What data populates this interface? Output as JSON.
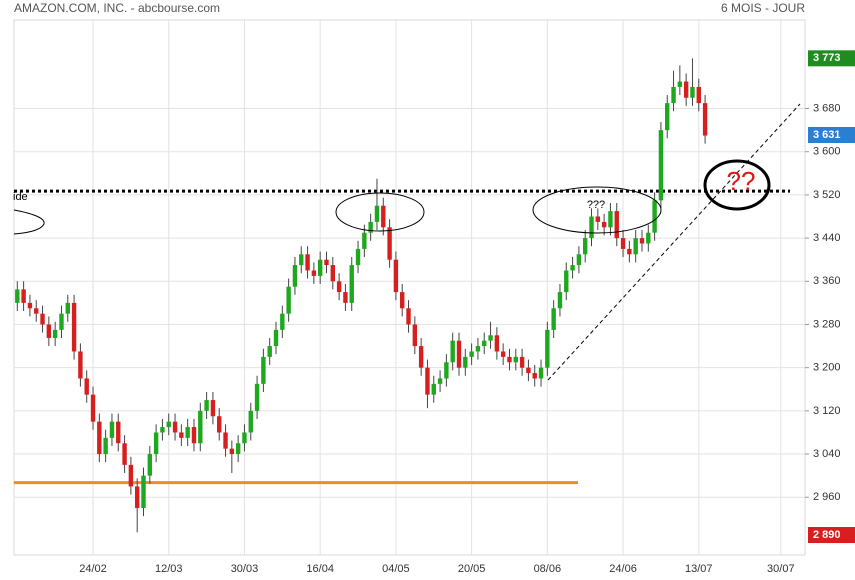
{
  "chart_data": {
    "type": "candlestick",
    "title": "AMAZON.COM, INC. - abcbourse.com",
    "subtitle": "6 MOIS - JOUR",
    "categories": [
      null,
      null,
      null,
      null,
      null,
      null,
      null,
      null,
      null,
      null,
      null,
      null,
      "24/02",
      null,
      null,
      null,
      null,
      null,
      null,
      null,
      null,
      null,
      null,
      null,
      "12/03",
      null,
      null,
      null,
      null,
      null,
      null,
      null,
      null,
      null,
      null,
      null,
      "30/03",
      null,
      null,
      null,
      null,
      null,
      null,
      null,
      null,
      null,
      null,
      null,
      "16/04",
      null,
      null,
      null,
      null,
      null,
      null,
      null,
      null,
      null,
      null,
      null,
      "04/05",
      null,
      null,
      null,
      null,
      null,
      null,
      null,
      null,
      null,
      null,
      null,
      "20/05",
      null,
      null,
      null,
      null,
      null,
      null,
      null,
      null,
      null,
      null,
      null,
      "08/06",
      null,
      null,
      null,
      null,
      null,
      null,
      null,
      null,
      null,
      null,
      null,
      "24/06",
      null,
      null,
      null,
      null,
      null,
      null,
      null,
      null,
      null,
      null,
      null,
      "13/07",
      null,
      null,
      null,
      null,
      null,
      null,
      null,
      null,
      null,
      null,
      null,
      null,
      "30/07"
    ],
    "open": [
      3320,
      3345,
      3320,
      3310,
      3300,
      3280,
      3255,
      3270,
      3300,
      3320,
      3230,
      3180,
      3150,
      3100,
      3040,
      3070,
      3100,
      3060,
      3020,
      2980,
      2940,
      3000,
      3040,
      3080,
      3090,
      3100,
      3080,
      3070,
      3090,
      3060,
      3120,
      3140,
      3110,
      3080,
      3050,
      3040,
      3060,
      3080,
      3120,
      3170,
      3220,
      3240,
      3270,
      3300,
      3350,
      3390,
      3410,
      3380,
      3370,
      3400,
      3390,
      3360,
      3340,
      3320,
      3390,
      3420,
      3450,
      3470,
      3500,
      3460,
      3400,
      3340,
      3310,
      3280,
      3240,
      3200,
      3150,
      3170,
      3180,
      3210,
      3250,
      3200,
      3220,
      3230,
      3240,
      3250,
      3260,
      3230,
      3220,
      3210,
      3220,
      3200,
      3190,
      3180,
      3200,
      3270,
      3310,
      3340,
      3380,
      3390,
      3410,
      3440,
      3480,
      3470,
      3460,
      3490,
      3440,
      3420,
      3410,
      3440,
      3430,
      3450,
      3510,
      3640,
      3690,
      3720,
      3730,
      3700,
      3720,
      3690,
      null,
      null,
      null,
      null,
      null,
      null,
      null,
      null,
      null,
      null,
      null,
      null
    ],
    "high": [
      3360,
      3360,
      3335,
      3325,
      3315,
      3295,
      3285,
      3315,
      3335,
      3335,
      3245,
      3195,
      3165,
      3115,
      3085,
      3115,
      3115,
      3075,
      3035,
      2995,
      3015,
      3055,
      3095,
      3105,
      3115,
      3115,
      3095,
      3105,
      3105,
      3135,
      3155,
      3155,
      3125,
      3095,
      3065,
      3075,
      3095,
      3135,
      3185,
      3235,
      3255,
      3285,
      3315,
      3365,
      3405,
      3425,
      3425,
      3395,
      3415,
      3415,
      3405,
      3375,
      3355,
      3405,
      3435,
      3465,
      3485,
      3550,
      3515,
      3475,
      3415,
      3355,
      3325,
      3295,
      3255,
      3215,
      3185,
      3195,
      3225,
      3265,
      3265,
      3235,
      3245,
      3255,
      3265,
      3285,
      3275,
      3245,
      3235,
      3235,
      3235,
      3215,
      3205,
      3215,
      3285,
      3325,
      3355,
      3395,
      3405,
      3425,
      3455,
      3495,
      3495,
      3485,
      3505,
      3505,
      3455,
      3435,
      3455,
      3455,
      3465,
      3525,
      3655,
      3705,
      3750,
      3760,
      3745,
      3773,
      3735,
      3705,
      null,
      null,
      null,
      null,
      null,
      null,
      null,
      null,
      null,
      null,
      null,
      null
    ],
    "low": [
      3305,
      3305,
      3295,
      3285,
      3265,
      3240,
      3240,
      3255,
      3285,
      3215,
      3165,
      3135,
      3085,
      3025,
      3025,
      3055,
      3045,
      3005,
      2965,
      2895,
      2925,
      2985,
      3025,
      3065,
      3075,
      3065,
      3055,
      3055,
      3045,
      3045,
      3105,
      3095,
      3065,
      3035,
      3005,
      3025,
      3045,
      3065,
      3105,
      3155,
      3205,
      3225,
      3255,
      3285,
      3335,
      3375,
      3365,
      3355,
      3355,
      3375,
      3345,
      3325,
      3305,
      3305,
      3375,
      3405,
      3435,
      3455,
      3445,
      3385,
      3325,
      3295,
      3265,
      3225,
      3185,
      3125,
      3135,
      3155,
      3165,
      3195,
      3185,
      3185,
      3205,
      3215,
      3225,
      3235,
      3215,
      3205,
      3195,
      3195,
      3185,
      3175,
      3165,
      3165,
      3185,
      3255,
      3295,
      3325,
      3365,
      3375,
      3395,
      3425,
      3455,
      3445,
      3445,
      3425,
      3405,
      3395,
      3395,
      3415,
      3415,
      3435,
      3495,
      3625,
      3675,
      3705,
      3685,
      3685,
      3675,
      3615,
      null,
      null,
      null,
      null,
      null,
      null,
      null,
      null,
      null,
      null,
      null,
      null
    ],
    "close": [
      3345,
      3320,
      3310,
      3300,
      3280,
      3255,
      3270,
      3300,
      3320,
      3230,
      3180,
      3150,
      3100,
      3040,
      3070,
      3100,
      3060,
      3020,
      2980,
      2940,
      3000,
      3040,
      3080,
      3090,
      3100,
      3080,
      3070,
      3090,
      3060,
      3120,
      3140,
      3110,
      3080,
      3050,
      3040,
      3060,
      3080,
      3120,
      3170,
      3220,
      3240,
      3270,
      3300,
      3350,
      3390,
      3410,
      3380,
      3370,
      3400,
      3390,
      3360,
      3340,
      3320,
      3390,
      3420,
      3450,
      3470,
      3500,
      3460,
      3400,
      3340,
      3310,
      3280,
      3240,
      3200,
      3150,
      3170,
      3180,
      3210,
      3250,
      3200,
      3220,
      3230,
      3240,
      3250,
      3260,
      3230,
      3220,
      3210,
      3220,
      3200,
      3190,
      3180,
      3200,
      3270,
      3310,
      3340,
      3380,
      3390,
      3410,
      3440,
      3480,
      3470,
      3460,
      3490,
      3440,
      3420,
      3410,
      3440,
      3430,
      3450,
      3510,
      3640,
      3690,
      3720,
      3730,
      3700,
      3720,
      3690,
      3630,
      null,
      null,
      null,
      null,
      null,
      null,
      null,
      null,
      null,
      null,
      null,
      null
    ],
    "up_color": "#1ea81e",
    "down_color": "#d71f1f",
    "ylim": [
      2853,
      3844
    ],
    "yticks": [
      {
        "value": 3680,
        "label": "3 680"
      },
      {
        "value": 3600,
        "label": "3 600"
      },
      {
        "value": 3520,
        "label": "3 520"
      },
      {
        "value": 3440,
        "label": "3 440"
      },
      {
        "value": 3360,
        "label": "3 360"
      },
      {
        "value": 3280,
        "label": "3 280"
      },
      {
        "value": 3200,
        "label": "3 200"
      },
      {
        "value": 3120,
        "label": "3 120"
      },
      {
        "value": 3040,
        "label": "3 040"
      },
      {
        "value": 2960,
        "label": "2 960"
      }
    ],
    "grid": true,
    "price_markers": [
      {
        "value": 3773,
        "label": "3 773",
        "color": "#1e8c1e"
      },
      {
        "value": 3631,
        "label": "3 631",
        "color": "#2a7fd0"
      },
      {
        "value": 2890,
        "label": "2 890",
        "color": "#d71f1f"
      }
    ],
    "levels": [
      {
        "value": 2987,
        "color": "#f28c1e"
      },
      {
        "value": 3527,
        "color": "#000000"
      }
    ],
    "annotations": [
      "???",
      "??",
      "ide"
    ]
  }
}
